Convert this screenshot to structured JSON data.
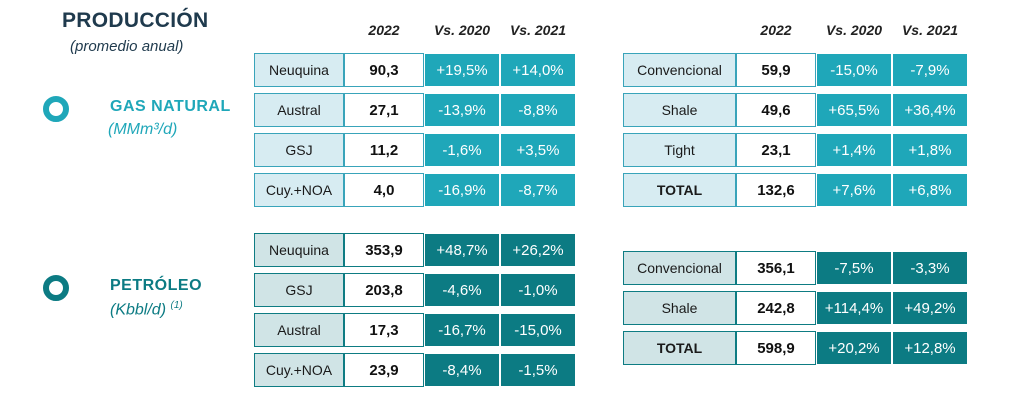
{
  "header": {
    "title": "PRODUCCIÓN",
    "subtitle": "(promedio anual)"
  },
  "columns": {
    "year": "2022",
    "vs2020": "Vs. 2020",
    "vs2021": "Vs. 2021"
  },
  "gas": {
    "name": "GAS NATURAL",
    "unit": "(MMm³/d)",
    "color": "#1fa7b9",
    "regions": [
      {
        "label": "Neuquina",
        "value": "90,3",
        "vs2020": "+19,5%",
        "vs2021": "+14,0%"
      },
      {
        "label": "Austral",
        "value": "27,1",
        "vs2020": "-13,9%",
        "vs2021": "-8,8%"
      },
      {
        "label": "GSJ",
        "value": "11,2",
        "vs2020": "-1,6%",
        "vs2021": "+3,5%"
      },
      {
        "label": "Cuy.+NOA",
        "value": "4,0",
        "vs2020": "-16,9%",
        "vs2021": "-8,7%"
      }
    ],
    "types": [
      {
        "label": "Convencional",
        "value": "59,9",
        "vs2020": "-15,0%",
        "vs2021": "-7,9%"
      },
      {
        "label": "Shale",
        "value": "49,6",
        "vs2020": "+65,5%",
        "vs2021": "+36,4%"
      },
      {
        "label": "Tight",
        "value": "23,1",
        "vs2020": "+1,4%",
        "vs2021": "+1,8%"
      },
      {
        "label": "TOTAL",
        "value": "132,6",
        "vs2020": "+7,6%",
        "vs2021": "+6,8%"
      }
    ]
  },
  "oil": {
    "name": "PETRÓLEO",
    "unit": "(Kbbl/d)",
    "footnote": "(1)",
    "color": "#0c7b83",
    "regions": [
      {
        "label": "Neuquina",
        "value": "353,9",
        "vs2020": "+48,7%",
        "vs2021": "+26,2%"
      },
      {
        "label": "GSJ",
        "value": "203,8",
        "vs2020": "-4,6%",
        "vs2021": "-1,0%"
      },
      {
        "label": "Austral",
        "value": "17,3",
        "vs2020": "-16,7%",
        "vs2021": "-15,0%"
      },
      {
        "label": "Cuy.+NOA",
        "value": "23,9",
        "vs2020": "-8,4%",
        "vs2021": "-1,5%"
      }
    ],
    "types": [
      {
        "label": "Convencional",
        "value": "356,1",
        "vs2020": "-7,5%",
        "vs2021": "-3,3%"
      },
      {
        "label": "Shale",
        "value": "242,8",
        "vs2020": "+114,4%",
        "vs2021": "+49,2%"
      },
      {
        "label": "TOTAL",
        "value": "598,9",
        "vs2020": "+20,2%",
        "vs2021": "+12,8%"
      }
    ]
  }
}
